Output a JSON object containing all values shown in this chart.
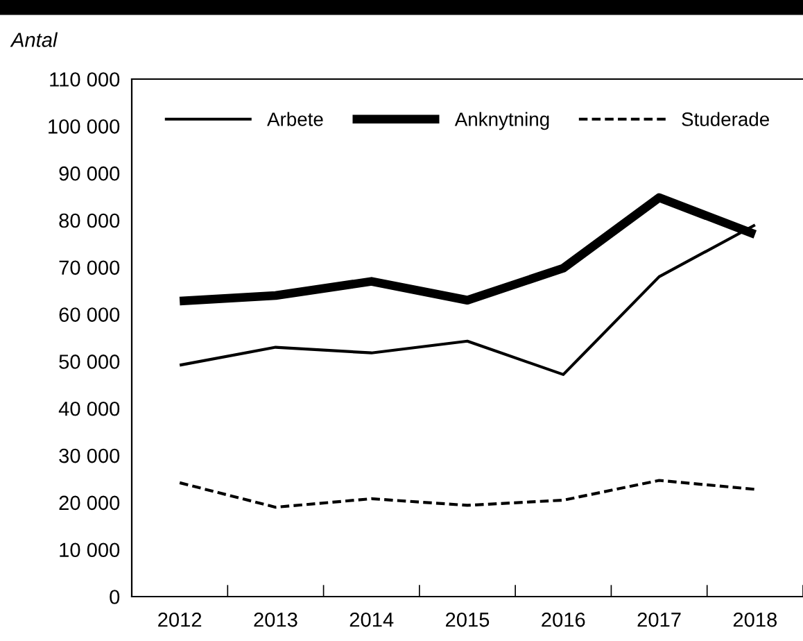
{
  "chart_data": {
    "type": "line",
    "ylabel": "Antal",
    "categories": [
      "2012",
      "2013",
      "2014",
      "2015",
      "2016",
      "2017",
      "2018"
    ],
    "series": [
      {
        "name": "Arbete",
        "color": "#000000",
        "line_style": "solid",
        "values": [
          49200,
          53000,
          51800,
          54300,
          47200,
          68000,
          79000
        ]
      },
      {
        "name": "Anknytning",
        "color": "#000000",
        "line_style": "solid",
        "values": [
          62800,
          64000,
          67000,
          63000,
          69800,
          84800,
          77000
        ]
      },
      {
        "name": "Studerade",
        "color": "#000000",
        "line_style": "dashed",
        "values": [
          24200,
          19000,
          20800,
          19400,
          20500,
          24700,
          22800
        ]
      }
    ],
    "ylim": [
      0,
      110000
    ],
    "yticks": [
      {
        "value": 0,
        "label": "0"
      },
      {
        "value": 10000,
        "label": "10 000"
      },
      {
        "value": 20000,
        "label": "20 000"
      },
      {
        "value": 30000,
        "label": "30 000"
      },
      {
        "value": 40000,
        "label": "40 000"
      },
      {
        "value": 50000,
        "label": "50 000"
      },
      {
        "value": 60000,
        "label": "60 000"
      },
      {
        "value": 70000,
        "label": "70 000"
      },
      {
        "value": 80000,
        "label": "80 000"
      },
      {
        "value": 90000,
        "label": "90 000"
      },
      {
        "value": 100000,
        "label": "100 000"
      },
      {
        "value": 110000,
        "label": "110 000"
      }
    ],
    "grid": false,
    "legend": "top",
    "marker": "none"
  }
}
